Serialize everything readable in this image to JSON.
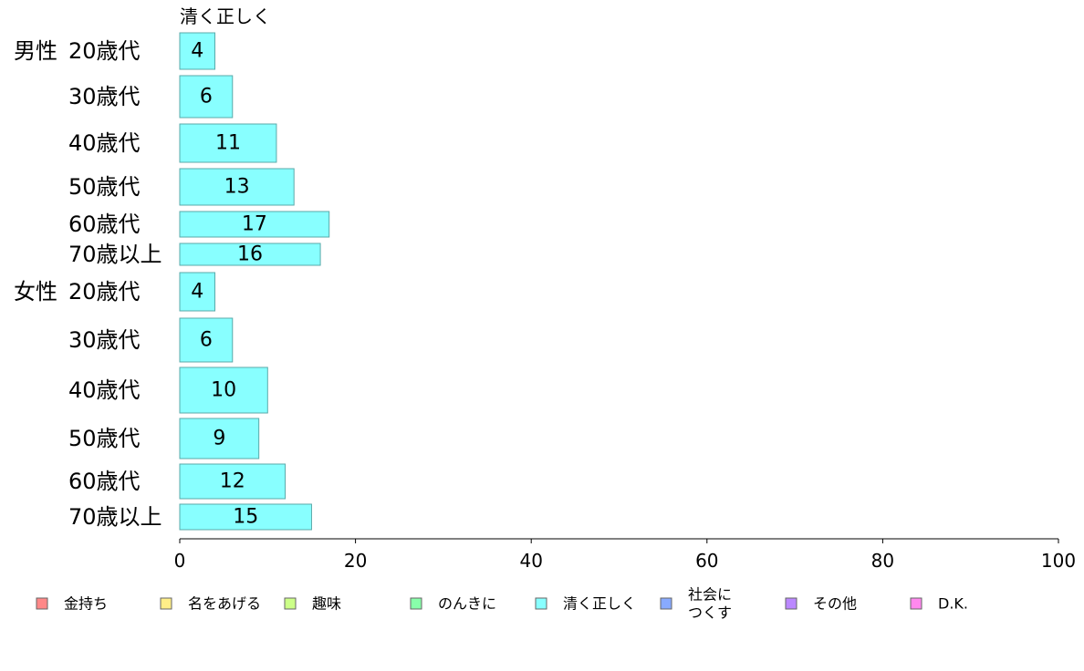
{
  "chart_data": {
    "type": "bar",
    "orientation": "horizontal",
    "series_title": "清く正しく",
    "series": [
      {
        "name": "清く正しく",
        "color": "#88ffff"
      }
    ],
    "groups": [
      {
        "label": "男性",
        "categories": [
          "20歳代",
          "30歳代",
          "40歳代",
          "50歳代",
          "60歳代",
          "70歳以上"
        ],
        "values": [
          4,
          6,
          11,
          13,
          17,
          16
        ]
      },
      {
        "label": "女性",
        "categories": [
          "20歳代",
          "30歳代",
          "40歳代",
          "50歳代",
          "60歳代",
          "70歳以上"
        ],
        "values": [
          4,
          6,
          10,
          9,
          12,
          15
        ]
      }
    ],
    "xlim": [
      0,
      100
    ],
    "xticks": [
      "0",
      "20",
      "40",
      "60",
      "80",
      "100"
    ],
    "grid": false,
    "legend": {
      "placement": "bottom",
      "entries": [
        {
          "lines": [
            "金持ち"
          ],
          "color": "#ff8888"
        },
        {
          "lines": [
            "名をあげる"
          ],
          "color": "#ffee88"
        },
        {
          "lines": [
            "趣味"
          ],
          "color": "#ccff88"
        },
        {
          "lines": [
            "のんきに"
          ],
          "color": "#88ffaa"
        },
        {
          "lines": [
            "清く正しく"
          ],
          "color": "#88ffff"
        },
        {
          "lines": [
            "社会に",
            "つくす"
          ],
          "color": "#88aaff"
        },
        {
          "lines": [
            "その他"
          ],
          "color": "#bb88ff"
        },
        {
          "lines": [
            "D.K."
          ],
          "color": "#ff88ee"
        }
      ]
    }
  }
}
